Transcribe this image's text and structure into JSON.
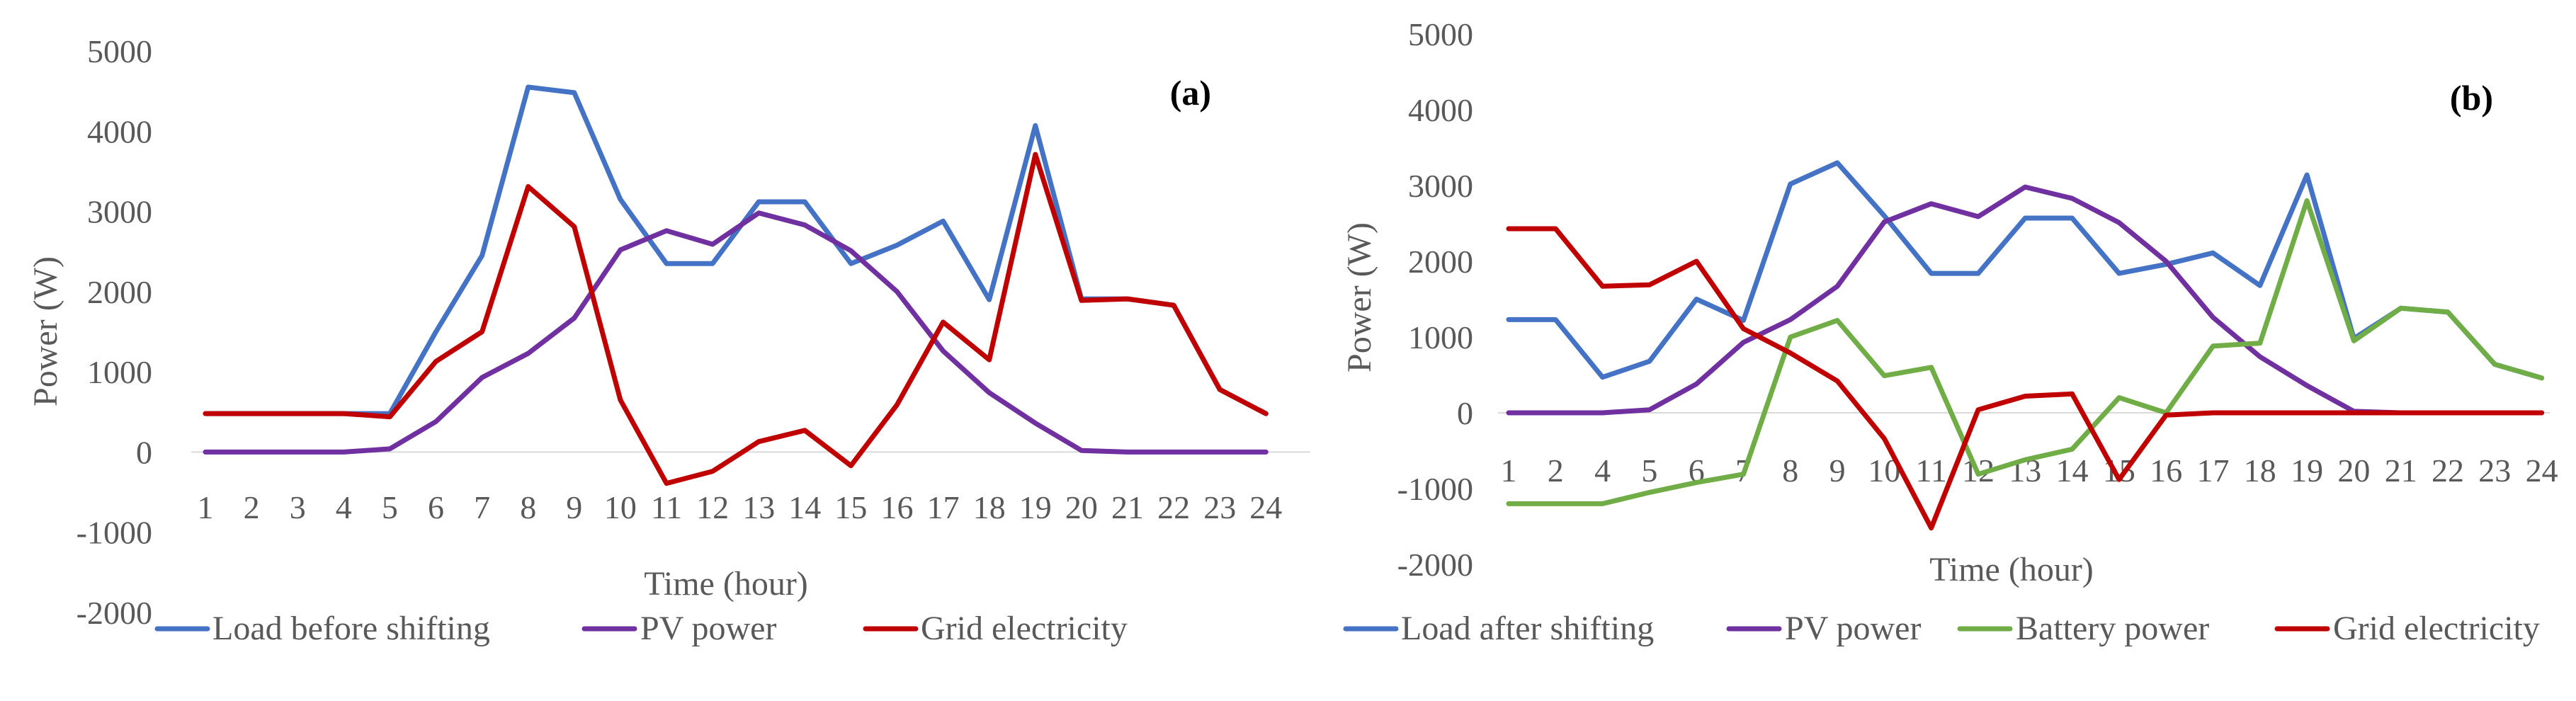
{
  "chart_data": [
    {
      "type": "line",
      "panel_label": "(a)",
      "xlabel": "Time (hour)",
      "ylabel": "Power (W)",
      "ylim": [
        -2000,
        5000
      ],
      "y_ticks": [
        "5000",
        "4000",
        "3000",
        "2000",
        "1000",
        "0",
        "-1000",
        "-2000"
      ],
      "categories": [
        "1",
        "2",
        "3",
        "4",
        "5",
        "6",
        "7",
        "8",
        "9",
        "10",
        "11",
        "12",
        "13",
        "14",
        "15",
        "16",
        "17",
        "18",
        "19",
        "20",
        "21",
        "22",
        "23",
        "24"
      ],
      "legend_position": "bottom",
      "series": [
        {
          "name": "Load before shifting",
          "color": "#4472C4",
          "values": [
            480,
            480,
            480,
            480,
            480,
            1500,
            2450,
            4550,
            4480,
            3150,
            2350,
            2350,
            3120,
            3120,
            2350,
            2580,
            2880,
            1900,
            4070,
            1910,
            1910,
            1830,
            780,
            480
          ]
        },
        {
          "name": "PV power",
          "color": "#7030A0",
          "values": [
            0,
            0,
            0,
            0,
            40,
            380,
            930,
            1230,
            1670,
            2520,
            2760,
            2590,
            2980,
            2830,
            2510,
            2000,
            1260,
            740,
            360,
            20,
            0,
            0,
            0,
            0
          ]
        },
        {
          "name": "Grid electricity",
          "color": "#C00000",
          "values": [
            480,
            480,
            480,
            480,
            440,
            1130,
            1500,
            3310,
            2810,
            650,
            -390,
            -240,
            130,
            270,
            -170,
            590,
            1620,
            1150,
            3710,
            1890,
            1910,
            1830,
            780,
            480
          ]
        }
      ]
    },
    {
      "type": "line",
      "panel_label": "(b)",
      "xlabel": "Time (hour)",
      "ylabel": "Power (W)",
      "ylim": [
        -2000,
        5000
      ],
      "y_ticks": [
        "5000",
        "4000",
        "3000",
        "2000",
        "1000",
        "0",
        "-1000",
        "-2000"
      ],
      "categories": [
        "1",
        "2",
        "4",
        "5",
        "6",
        "7",
        "8",
        "9",
        "10",
        "11",
        "12",
        "13",
        "14",
        "15",
        "16",
        "17",
        "18",
        "19",
        "20",
        "21",
        "22",
        "23",
        "24"
      ],
      "legend_position": "bottom",
      "series": [
        {
          "name": "Load after shifting",
          "color": "#4472C4",
          "values": [
            1230,
            1230,
            470,
            680,
            1500,
            1220,
            3020,
            3300,
            2600,
            1840,
            1840,
            2570,
            2570,
            1840,
            1960,
            2110,
            1680,
            3140,
            980,
            1380,
            1330,
            640,
            460
          ]
        },
        {
          "name": "PV power",
          "color": "#7030A0",
          "values": [
            0,
            0,
            0,
            40,
            380,
            930,
            1230,
            1670,
            2520,
            2760,
            2590,
            2980,
            2830,
            2510,
            2000,
            1260,
            740,
            360,
            20,
            0,
            0,
            0,
            0
          ]
        },
        {
          "name": "Battery power",
          "color": "#70AD47",
          "values": [
            -1200,
            -1200,
            -1200,
            -1050,
            -920,
            -810,
            1000,
            1220,
            490,
            600,
            -810,
            -620,
            -480,
            200,
            0,
            880,
            920,
            2800,
            950,
            1380,
            1330,
            640,
            460
          ]
        },
        {
          "name": "Grid electricity",
          "color": "#C00000",
          "values": [
            2430,
            2430,
            1670,
            1690,
            2000,
            1110,
            790,
            420,
            -340,
            -1520,
            40,
            220,
            250,
            -880,
            -30,
            0,
            0,
            0,
            0,
            0,
            0,
            0,
            0
          ]
        }
      ]
    }
  ]
}
